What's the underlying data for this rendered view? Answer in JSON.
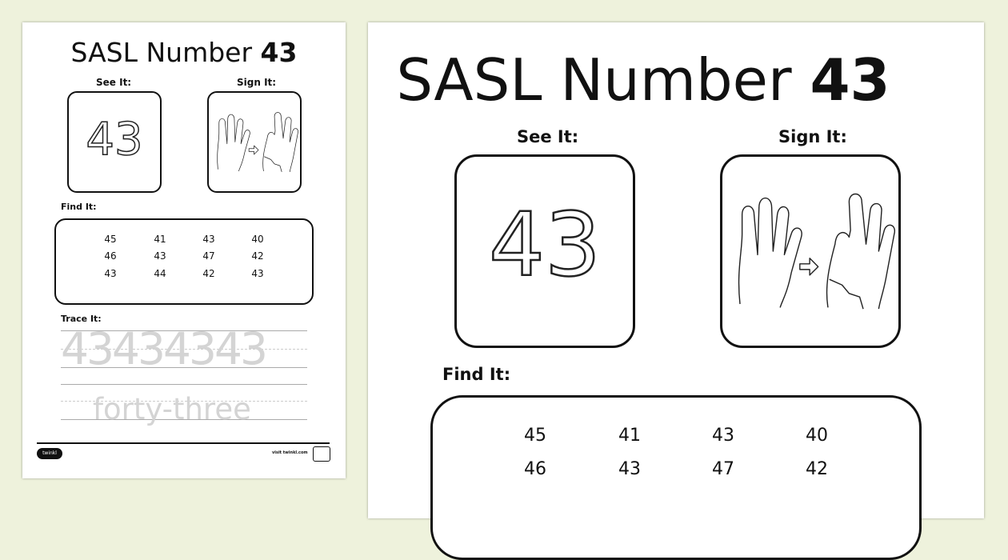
{
  "worksheet": {
    "title_prefix": "SASL Number",
    "number": "43",
    "see_it_label": "See It:",
    "sign_it_label": "Sign It:",
    "find_it_label": "Find It:",
    "trace_it_label": "Trace It:",
    "number_word": "forty-three",
    "trace_numbers": "43434343",
    "find_grid": [
      [
        "45",
        "41",
        "43",
        "40"
      ],
      [
        "46",
        "43",
        "47",
        "42"
      ],
      [
        "43",
        "44",
        "42",
        "43"
      ]
    ],
    "brand_logo": "twinkl",
    "footer_url": "visit twinkl.com"
  },
  "colors": {
    "background": "#eef2dc",
    "page": "#ffffff",
    "trace": "#d4d4d4"
  }
}
